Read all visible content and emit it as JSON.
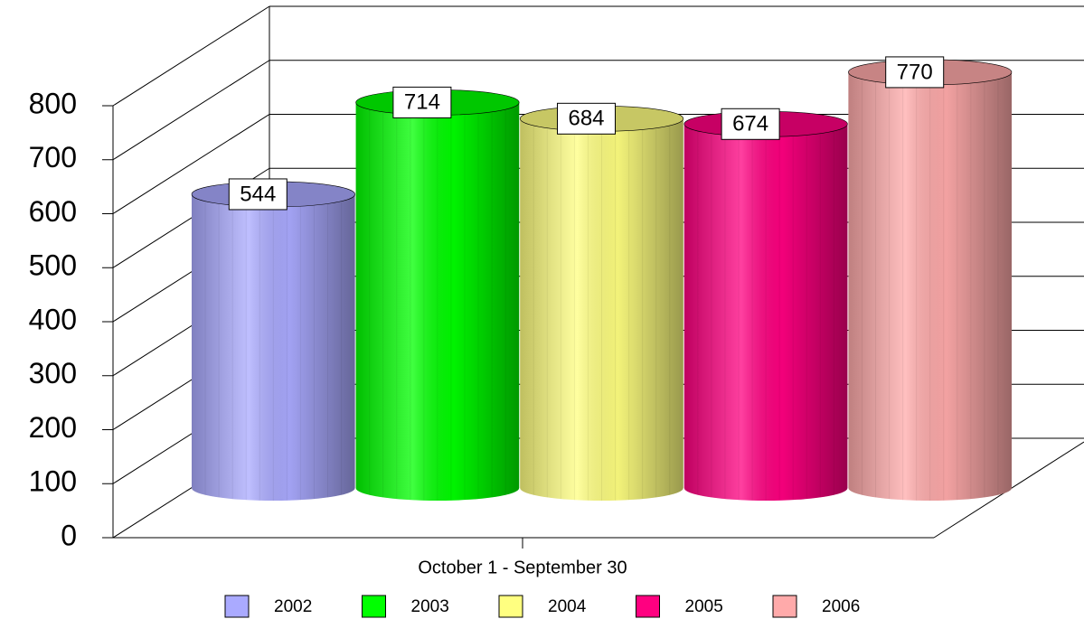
{
  "chart_data": {
    "type": "bar3d",
    "categories": [
      "October 1 - September 30"
    ],
    "series": [
      {
        "name": "2002",
        "color": "#aaaaff",
        "values": [
          544
        ]
      },
      {
        "name": "2003",
        "color": "#00ff00",
        "values": [
          714
        ]
      },
      {
        "name": "2004",
        "color": "#ffff80",
        "values": [
          684
        ]
      },
      {
        "name": "2005",
        "color": "#ff0080",
        "values": [
          674
        ]
      },
      {
        "name": "2006",
        "color": "#ffaaaa",
        "values": [
          770
        ]
      }
    ],
    "ylim": [
      0,
      800
    ],
    "yticks": [
      0,
      100,
      200,
      300,
      400,
      500,
      600,
      700,
      800
    ],
    "grid": true,
    "legend": "bottom"
  }
}
